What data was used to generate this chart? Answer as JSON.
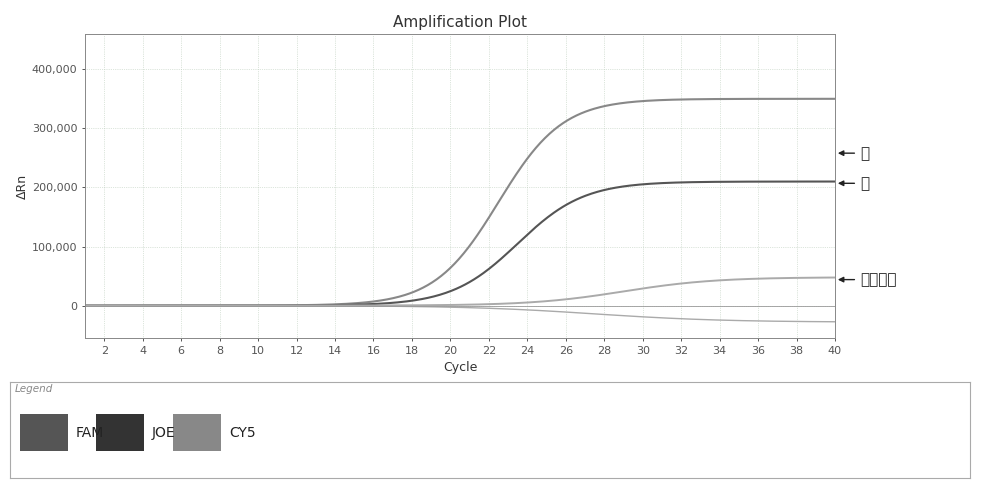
{
  "title": "Amplification Plot",
  "xlabel": "Cycle",
  "ylabel": "ΔRn",
  "xlim": [
    1,
    40
  ],
  "ylim": [
    -55000,
    460000
  ],
  "xticks": [
    2,
    4,
    6,
    8,
    10,
    12,
    14,
    16,
    18,
    20,
    22,
    24,
    26,
    28,
    30,
    32,
    34,
    36,
    38,
    40
  ],
  "yticks": [
    0,
    100000,
    200000,
    300000,
    400000
  ],
  "ytick_labels": [
    "0",
    "100,000",
    "200,000",
    "300,000",
    "400,000"
  ],
  "background_color": "#ffffff",
  "plot_bg_color": "#ffffff",
  "grid_color": "#bbccbb",
  "curves": {
    "turtle": {
      "color": "#888888",
      "linewidth": 1.5,
      "L": 350000,
      "k": 0.6,
      "x0": 22.5
    },
    "bovine": {
      "color": "#555555",
      "linewidth": 1.5,
      "L": 210000,
      "k": 0.58,
      "x0": 23.5
    },
    "ctrl_pos": {
      "color": "#aaaaaa",
      "linewidth": 1.4,
      "L": 48000,
      "k": 0.42,
      "x0": 29.0
    },
    "ctrl_neg": {
      "color": "#aaaaaa",
      "linewidth": 1.0,
      "L": -28000,
      "k": 0.3,
      "x0": 27.5
    }
  },
  "annotations": [
    {
      "text": "龟",
      "y_data": 258000,
      "fontsize": 12
    },
    {
      "text": "牛",
      "y_data": 207000,
      "fontsize": 12
    },
    {
      "text": "内标质控",
      "y_data": 44000,
      "fontsize": 11
    }
  ],
  "legend_labels": [
    "FAM",
    "JOE",
    "CY5"
  ],
  "legend_colors": [
    "#555555",
    "#333333",
    "#888888"
  ]
}
